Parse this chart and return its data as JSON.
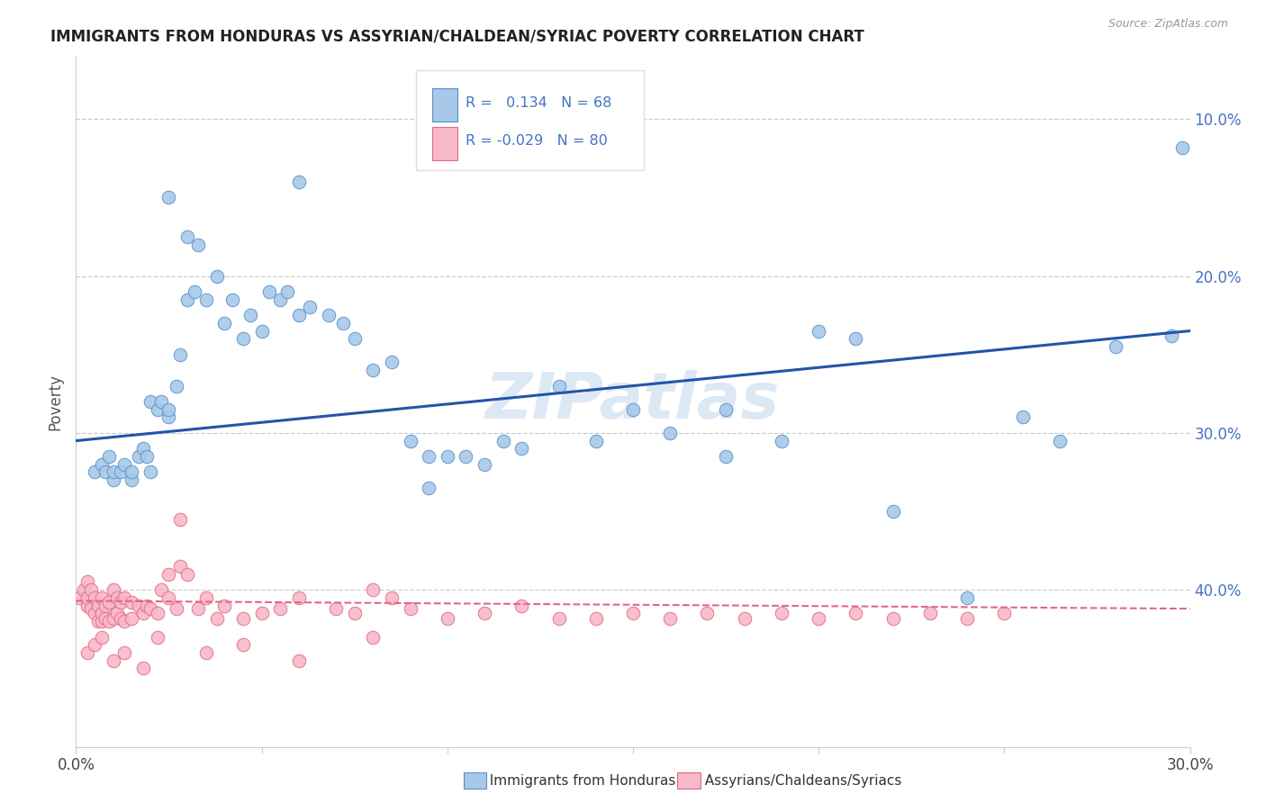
{
  "title": "IMMIGRANTS FROM HONDURAS VS ASSYRIAN/CHALDEAN/SYRIAC POVERTY CORRELATION CHART",
  "source": "Source: ZipAtlas.com",
  "ylabel": "Poverty",
  "ylabel_right_ticks": [
    "40.0%",
    "30.0%",
    "20.0%",
    "10.0%"
  ],
  "ylabel_right_positions": [
    0.4,
    0.3,
    0.2,
    0.1
  ],
  "legend1_label": "Immigrants from Honduras",
  "legend2_label": "Assyrians/Chaldeans/Syriacs",
  "R1": 0.134,
  "N1": 68,
  "R2": -0.029,
  "N2": 80,
  "color_blue_fill": "#A8C8E8",
  "color_blue_edge": "#5590CC",
  "color_pink_fill": "#F8B8C8",
  "color_pink_edge": "#E06888",
  "color_blue_line": "#2255AA",
  "color_pink_line": "#E06888",
  "color_axis_text": "#4472C4",
  "watermark": "ZIPatlas",
  "xlim": [
    0.0,
    0.3
  ],
  "ylim": [
    -0.02,
    0.44
  ],
  "plot_ylim": [
    0.0,
    0.44
  ],
  "blue_x": [
    0.005,
    0.007,
    0.008,
    0.009,
    0.01,
    0.01,
    0.012,
    0.013,
    0.015,
    0.015,
    0.017,
    0.018,
    0.019,
    0.02,
    0.02,
    0.022,
    0.023,
    0.025,
    0.025,
    0.027,
    0.028,
    0.03,
    0.03,
    0.032,
    0.033,
    0.035,
    0.038,
    0.04,
    0.042,
    0.045,
    0.047,
    0.05,
    0.052,
    0.055,
    0.057,
    0.06,
    0.063,
    0.068,
    0.072,
    0.075,
    0.08,
    0.085,
    0.09,
    0.095,
    0.1,
    0.105,
    0.11,
    0.115,
    0.12,
    0.13,
    0.14,
    0.15,
    0.16,
    0.175,
    0.19,
    0.2,
    0.21,
    0.22,
    0.24,
    0.255,
    0.265,
    0.28,
    0.295,
    0.298,
    0.025,
    0.06,
    0.095,
    0.175
  ],
  "blue_y": [
    0.175,
    0.18,
    0.175,
    0.185,
    0.17,
    0.175,
    0.175,
    0.18,
    0.17,
    0.175,
    0.185,
    0.19,
    0.185,
    0.175,
    0.22,
    0.215,
    0.22,
    0.21,
    0.215,
    0.23,
    0.25,
    0.285,
    0.325,
    0.29,
    0.32,
    0.285,
    0.3,
    0.27,
    0.285,
    0.26,
    0.275,
    0.265,
    0.29,
    0.285,
    0.29,
    0.275,
    0.28,
    0.275,
    0.27,
    0.26,
    0.24,
    0.245,
    0.195,
    0.185,
    0.185,
    0.185,
    0.18,
    0.195,
    0.19,
    0.23,
    0.195,
    0.215,
    0.2,
    0.215,
    0.195,
    0.265,
    0.26,
    0.15,
    0.095,
    0.21,
    0.195,
    0.255,
    0.262,
    0.382,
    0.35,
    0.36,
    0.165,
    0.185
  ],
  "pink_x": [
    0.001,
    0.002,
    0.003,
    0.003,
    0.003,
    0.004,
    0.004,
    0.005,
    0.005,
    0.006,
    0.006,
    0.007,
    0.007,
    0.007,
    0.008,
    0.008,
    0.009,
    0.009,
    0.01,
    0.01,
    0.011,
    0.011,
    0.012,
    0.012,
    0.013,
    0.013,
    0.015,
    0.015,
    0.017,
    0.018,
    0.019,
    0.02,
    0.022,
    0.023,
    0.025,
    0.025,
    0.027,
    0.028,
    0.03,
    0.033,
    0.035,
    0.038,
    0.04,
    0.045,
    0.05,
    0.055,
    0.06,
    0.07,
    0.075,
    0.08,
    0.085,
    0.09,
    0.1,
    0.11,
    0.12,
    0.13,
    0.14,
    0.15,
    0.16,
    0.17,
    0.18,
    0.19,
    0.2,
    0.21,
    0.22,
    0.23,
    0.24,
    0.25,
    0.003,
    0.005,
    0.007,
    0.01,
    0.013,
    0.018,
    0.022,
    0.028,
    0.035,
    0.045,
    0.06,
    0.08
  ],
  "pink_y": [
    0.095,
    0.1,
    0.09,
    0.095,
    0.105,
    0.088,
    0.1,
    0.085,
    0.095,
    0.08,
    0.09,
    0.08,
    0.085,
    0.095,
    0.082,
    0.09,
    0.08,
    0.092,
    0.082,
    0.1,
    0.085,
    0.095,
    0.082,
    0.092,
    0.08,
    0.095,
    0.082,
    0.092,
    0.09,
    0.085,
    0.09,
    0.088,
    0.085,
    0.1,
    0.095,
    0.11,
    0.088,
    0.115,
    0.11,
    0.088,
    0.095,
    0.082,
    0.09,
    0.082,
    0.085,
    0.088,
    0.095,
    0.088,
    0.085,
    0.1,
    0.095,
    0.088,
    0.082,
    0.085,
    0.09,
    0.082,
    0.082,
    0.085,
    0.082,
    0.085,
    0.082,
    0.085,
    0.082,
    0.085,
    0.082,
    0.085,
    0.082,
    0.085,
    0.06,
    0.065,
    0.07,
    0.055,
    0.06,
    0.05,
    0.07,
    0.145,
    0.06,
    0.065,
    0.055,
    0.07
  ],
  "background_color": "#FFFFFF",
  "grid_color": "#CCCCCC",
  "spine_color": "#CCCCCC"
}
